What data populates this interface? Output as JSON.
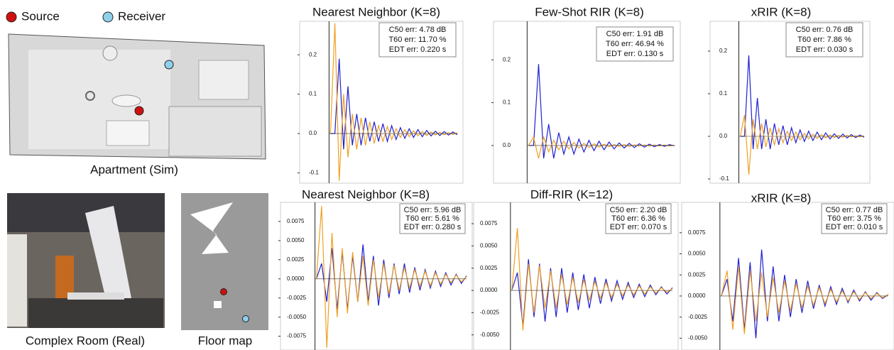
{
  "legend": {
    "source": "Source",
    "receiver": "Receiver"
  },
  "captions": {
    "apartment": "Apartment (Sim)",
    "room": "Complex Room (Real)",
    "floor": "Floor map"
  },
  "chart_data": [
    {
      "type": "line",
      "title": "Nearest Neighbor (K=8)",
      "annotation": [
        "C50 err: 4.78 dB",
        "T60 err: 11.70 %",
        "EDT err: 0.220 s"
      ],
      "ylim": [
        -0.126,
        0.285
      ],
      "yticks": [
        {
          "value": -0.1,
          "label": "-0.1"
        },
        {
          "value": 0,
          "label": "0.0"
        },
        0.1,
        0.2
      ],
      "series": [
        {
          "color": "#2020d0",
          "values": [
            0,
            0,
            0.19,
            -0.04,
            0.12,
            -0.03,
            0.05,
            -0.03,
            0.04,
            -0.02,
            0.03,
            -0.02,
            0.025,
            -0.02,
            0.02,
            -0.015,
            0.015,
            -0.012,
            0.012,
            -0.01,
            0.01,
            -0.008,
            0.008,
            -0.006,
            0.006,
            -0.005,
            0.005,
            -0.004,
            0.004,
            -0.003
          ]
        },
        {
          "color": "#f0a020",
          "values": [
            0,
            0.28,
            -0.12,
            0.1,
            -0.06,
            0.05,
            -0.04,
            0.04,
            -0.03,
            0.03,
            -0.025,
            0.02,
            -0.02,
            0.018,
            -0.015,
            0.012,
            -0.01,
            0.01,
            -0.008,
            0.007,
            -0.006,
            0.005,
            -0.005,
            0.004,
            -0.004,
            0.003,
            -0.003,
            0.002,
            -0.002,
            0.002
          ]
        }
      ]
    },
    {
      "type": "line",
      "title": "Few-Shot RIR (K=8)",
      "annotation": [
        "C50 err: 1.91 dB",
        "T60 err: 46.94 %",
        "EDT err: 0.130 s"
      ],
      "ylim": [
        -0.088,
        0.29
      ],
      "yticks": [
        {
          "value": 0,
          "label": "0.0"
        },
        0.1,
        0.2
      ],
      "series": [
        {
          "color": "#2020d0",
          "values": [
            0,
            0,
            0.19,
            -0.03,
            0.05,
            -0.03,
            0.03,
            -0.02,
            0.02,
            -0.02,
            0.015,
            -0.015,
            0.012,
            -0.012,
            0.01,
            -0.01,
            0.008,
            -0.008,
            0.006,
            -0.006,
            0.005,
            -0.005,
            0.004,
            -0.004,
            0.003,
            -0.003,
            0.002,
            -0.002,
            0.002,
            -0.001
          ]
        },
        {
          "color": "#f0a020",
          "values": [
            0,
            0.02,
            -0.03,
            0.02,
            -0.015,
            0.012,
            -0.01,
            0.01,
            -0.008,
            0.007,
            -0.006,
            0.005,
            -0.005,
            0.004,
            -0.004,
            0.003,
            -0.003,
            0.002,
            -0.002,
            0.002,
            -0.002,
            0.001,
            -0.001,
            0.001,
            -0.001,
            0.001,
            -0.001,
            0.001,
            -0.001,
            0
          ]
        }
      ]
    },
    {
      "type": "line",
      "title": "xRIR (K=8)",
      "annotation": [
        "C50 err: 0.76 dB",
        "T60 err: 7.86 %",
        "EDT err: 0.030 s"
      ],
      "ylim": [
        -0.11,
        0.27
      ],
      "yticks": [
        {
          "value": -0.1,
          "label": "-0.1"
        },
        {
          "value": 0,
          "label": "0.0"
        },
        0.1,
        0.2
      ],
      "series": [
        {
          "color": "#2020d0",
          "values": [
            0,
            0,
            0.19,
            -0.03,
            0.09,
            -0.03,
            0.04,
            -0.03,
            0.03,
            -0.02,
            0.025,
            -0.02,
            0.02,
            -0.015,
            0.015,
            -0.012,
            0.012,
            -0.01,
            0.01,
            -0.008,
            0.008,
            -0.006,
            0.006,
            -0.005,
            0.005,
            -0.004,
            0.004,
            -0.003,
            0.003,
            -0.002
          ]
        },
        {
          "color": "#f0a020",
          "values": [
            0,
            0.05,
            -0.09,
            0.04,
            -0.03,
            0.03,
            -0.025,
            0.02,
            -0.02,
            0.018,
            -0.015,
            0.012,
            -0.01,
            0.01,
            -0.008,
            0.007,
            -0.006,
            0.005,
            -0.005,
            0.004,
            -0.004,
            0.003,
            -0.003,
            0.002,
            -0.002,
            0.002,
            -0.001,
            0.001,
            -0.001,
            0.001
          ]
        }
      ]
    },
    {
      "type": "line",
      "title": "Nearest Neighbor (K=8)",
      "annotation": [
        "C50 err: 5.96 dB",
        "T60 err: 5.61 %",
        "EDT err: 0.280 s"
      ],
      "ylim": [
        -0.0093,
        0.01
      ],
      "yticks": [
        {
          "value": -0.0075,
          "label": "-0.0075"
        },
        {
          "value": -0.005,
          "label": "-0.0050"
        },
        {
          "value": -0.0025,
          "label": "-0.0025"
        },
        {
          "value": 0,
          "label": "0.0000"
        },
        {
          "value": 0.0025,
          "label": "0.0025"
        },
        {
          "value": 0.005,
          "label": "0.0050"
        },
        0.0075
      ],
      "series": [
        {
          "color": "#2020d0",
          "values": [
            0,
            0.002,
            -0.003,
            0.004,
            -0.004,
            0.0035,
            -0.004,
            0.003,
            -0.003,
            0.0045,
            -0.003,
            0.003,
            -0.0035,
            0.0025,
            -0.0025,
            0.002,
            -0.002,
            0.002,
            -0.0018,
            0.0015,
            -0.0015,
            0.0012,
            -0.0012,
            0.001,
            -0.001,
            0.0008,
            -0.0008,
            0.0006,
            -0.0006,
            0.0004
          ]
        },
        {
          "color": "#f0a020",
          "values": [
            0,
            0.0095,
            -0.009,
            0.006,
            -0.005,
            0.004,
            -0.0045,
            0.0035,
            -0.003,
            0.003,
            -0.0035,
            0.0025,
            -0.0025,
            0.002,
            -0.002,
            0.0018,
            -0.0015,
            0.0015,
            -0.0012,
            0.0012,
            -0.001,
            0.001,
            -0.0009,
            0.0008,
            -0.0007,
            0.0006,
            -0.0005,
            0.0005,
            -0.0004,
            0.0003
          ]
        }
      ]
    },
    {
      "type": "line",
      "title": "Diff-RIR (K=12)",
      "annotation": [
        "C50 err: 2.20 dB",
        "T60 err: 6.36 %",
        "EDT err: 0.070 s"
      ],
      "ylim": [
        -0.0067,
        0.0099
      ],
      "yticks": [
        {
          "value": -0.005,
          "label": "-0.0050"
        },
        {
          "value": -0.0025,
          "label": "-0.0025"
        },
        {
          "value": 0,
          "label": "0.0000"
        },
        {
          "value": 0.0025,
          "label": "0.0025"
        },
        {
          "value": 0.005,
          "label": "0.0050"
        },
        0.0075
      ],
      "series": [
        {
          "color": "#2020d0",
          "values": [
            0,
            0.002,
            -0.004,
            0.0035,
            -0.003,
            0.003,
            -0.0035,
            0.0025,
            -0.003,
            0.0025,
            -0.0025,
            0.002,
            -0.0022,
            0.0018,
            -0.002,
            0.0015,
            -0.0015,
            0.0013,
            -0.0012,
            0.0011,
            -0.001,
            0.0009,
            -0.0008,
            0.0007,
            -0.0007,
            0.0006,
            -0.0005,
            0.0004,
            -0.0004,
            0.0003
          ]
        },
        {
          "color": "#f0a020",
          "values": [
            0,
            0.007,
            -0.0045,
            0.003,
            -0.0025,
            0.0028,
            -0.002,
            0.0022,
            -0.002,
            0.0018,
            -0.0016,
            0.0015,
            -0.0014,
            0.0012,
            -0.0011,
            0.001,
            -0.0009,
            0.0009,
            -0.0008,
            0.0007,
            -0.0006,
            0.0006,
            -0.0005,
            0.0005,
            -0.0004,
            0.0004,
            -0.0003,
            0.0003,
            -0.0002,
            0.0002
          ]
        }
      ]
    },
    {
      "type": "line",
      "title": "xRIR (K=8)",
      "annotation": [
        "C50 err: 0.77 dB",
        "T60 err: 3.75 %",
        "EDT err: 0.010 s"
      ],
      "ylim": [
        -0.0064,
        0.0111
      ],
      "yticks": [
        {
          "value": -0.005,
          "label": "-0.0050"
        },
        {
          "value": -0.0025,
          "label": "-0.0025"
        },
        {
          "value": 0,
          "label": "0.0000"
        },
        {
          "value": 0.0025,
          "label": "0.0025"
        },
        {
          "value": 0.005,
          "label": "0.0050"
        },
        0.0075
      ],
      "series": [
        {
          "color": "#2020d0",
          "values": [
            0,
            0.002,
            -0.003,
            0.0045,
            -0.004,
            0.004,
            -0.005,
            0.0055,
            -0.003,
            0.0035,
            -0.003,
            0.0025,
            -0.0025,
            0.002,
            -0.002,
            0.0018,
            -0.0015,
            0.0013,
            -0.0012,
            0.0011,
            -0.001,
            0.0009,
            -0.0008,
            0.0007,
            -0.0006,
            0.0005,
            -0.0005,
            0.0004,
            -0.0003,
            0.0002
          ]
        },
        {
          "color": "#f0a020",
          "values": [
            0,
            0.003,
            -0.004,
            0.0035,
            -0.0045,
            0.003,
            -0.003,
            0.0028,
            -0.0025,
            0.0022,
            -0.002,
            0.0018,
            -0.0018,
            0.0015,
            -0.0014,
            0.0012,
            -0.0011,
            0.001,
            -0.0009,
            0.0008,
            -0.0007,
            0.0006,
            -0.0006,
            0.0005,
            -0.0004,
            0.0004,
            -0.0003,
            0.0003,
            -0.0002,
            0.0002
          ]
        }
      ]
    }
  ]
}
